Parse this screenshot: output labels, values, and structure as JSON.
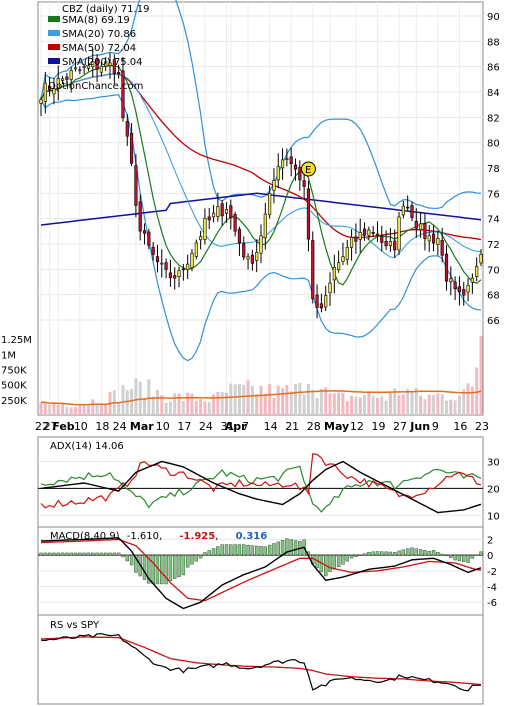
{
  "chart_data": {
    "type": "candlestick",
    "symbol_label": "CBZ (daily) 71.19",
    "watermark": "OptionChance.com",
    "colors": {
      "up": "#f5e642",
      "down": "#c8102e",
      "sma8": "#1a7a1a",
      "sma20": "#3aa0e0",
      "sma50": "#c00000",
      "sma200": "#1010a0",
      "bollinger": "#3090d8",
      "volume_up": "#f2b8c0",
      "volume_down": "#d0d0d0",
      "volume_avg": "#e07020",
      "adx": "#000000",
      "plus_di": "#2a8a2a",
      "minus_di": "#d01010",
      "macd": "#000000",
      "signal": "#d01010",
      "hist": "#7fc87f",
      "rs": "#000000",
      "rs_ma": "#d01010"
    },
    "legend": [
      {
        "label": "SMA(8) 69.19",
        "color": "#1a7a1a"
      },
      {
        "label": "SMA(20) 70.86",
        "color": "#3aa0e0"
      },
      {
        "label": "SMA(50) 72.04",
        "color": "#c00000"
      },
      {
        "label": "SMA(200) 75.04",
        "color": "#1010a0"
      }
    ],
    "price_axis": {
      "ticks": [
        "90",
        "88",
        "86",
        "84",
        "82",
        "80",
        "78",
        "76",
        "74",
        "72",
        "70",
        "68",
        "66"
      ],
      "ylim": [
        65,
        91
      ]
    },
    "volume_axis": {
      "ticks": [
        "1.25M",
        "1M",
        "750K",
        "500K",
        "250K"
      ],
      "ylim": [
        0,
        1400000
      ]
    },
    "x_labels": [
      {
        "t": "22",
        "i": 0,
        "bold": false
      },
      {
        "t": "27",
        "i": 2,
        "bold": false
      },
      {
        "t": "Feb",
        "i": 4,
        "bold": true
      },
      {
        "t": "10",
        "i": 9,
        "bold": false
      },
      {
        "t": "18",
        "i": 14,
        "bold": false
      },
      {
        "t": "24",
        "i": 18,
        "bold": false
      },
      {
        "t": "Mar",
        "i": 22,
        "bold": true
      },
      {
        "t": "10",
        "i": 28,
        "bold": false
      },
      {
        "t": "17",
        "i": 33,
        "bold": false
      },
      {
        "t": "24",
        "i": 38,
        "bold": false
      },
      {
        "t": "31",
        "i": 43,
        "bold": false
      },
      {
        "t": "Apr",
        "i": 44,
        "bold": true
      },
      {
        "t": "7",
        "i": 48,
        "bold": false
      },
      {
        "t": "14",
        "i": 53,
        "bold": false
      },
      {
        "t": "21",
        "i": 58,
        "bold": false
      },
      {
        "t": "28",
        "i": 63,
        "bold": false
      },
      {
        "t": "May",
        "i": 67,
        "bold": true
      },
      {
        "t": "12",
        "i": 73,
        "bold": false
      },
      {
        "t": "19",
        "i": 78,
        "bold": false
      },
      {
        "t": "27",
        "i": 83,
        "bold": false
      },
      {
        "t": "Jun",
        "i": 87,
        "bold": true
      },
      {
        "t": "9",
        "i": 92,
        "bold": false
      },
      {
        "t": "16",
        "i": 97,
        "bold": false
      },
      {
        "t": "23",
        "i": 102,
        "bold": false
      }
    ],
    "earnings_marker": {
      "label": "E",
      "i": 62
    },
    "close_anchors": [
      [
        0,
        84.0
      ],
      [
        3,
        84.6
      ],
      [
        8,
        85.6
      ],
      [
        14,
        86.2
      ],
      [
        17,
        86.0
      ],
      [
        18,
        85.2
      ],
      [
        19,
        82.0
      ],
      [
        21,
        78.0
      ],
      [
        23,
        73.0
      ],
      [
        26,
        71.0
      ],
      [
        29,
        69.5
      ],
      [
        32,
        69.5
      ],
      [
        35,
        71.5
      ],
      [
        38,
        73.5
      ],
      [
        41,
        74.5
      ],
      [
        43,
        75.0
      ],
      [
        45,
        73.0
      ],
      [
        48,
        70.5
      ],
      [
        50,
        71.5
      ],
      [
        53,
        75.5
      ],
      [
        55,
        78.5
      ],
      [
        57,
        79.0
      ],
      [
        59,
        78.0
      ],
      [
        61,
        76.5
      ],
      [
        63,
        68.0
      ],
      [
        64,
        66.5
      ],
      [
        66,
        67.5
      ],
      [
        68,
        70.0
      ],
      [
        70,
        71.0
      ],
      [
        72,
        72.0
      ],
      [
        75,
        73.0
      ],
      [
        78,
        73.0
      ],
      [
        80,
        71.5
      ],
      [
        82,
        72.0
      ],
      [
        84,
        75.5
      ],
      [
        86,
        74.5
      ],
      [
        88,
        73.0
      ],
      [
        90,
        72.5
      ],
      [
        92,
        72.5
      ],
      [
        94,
        69.5
      ],
      [
        96,
        68.0
      ],
      [
        98,
        67.5
      ],
      [
        100,
        69.0
      ],
      [
        101,
        70.5
      ],
      [
        102,
        71.2
      ]
    ],
    "volume_anchors": [
      [
        0,
        180000
      ],
      [
        10,
        200000
      ],
      [
        18,
        330000
      ],
      [
        20,
        480000
      ],
      [
        25,
        420000
      ],
      [
        30,
        300000
      ],
      [
        40,
        260000
      ],
      [
        44,
        400000
      ],
      [
        50,
        420000
      ],
      [
        55,
        380000
      ],
      [
        60,
        420000
      ],
      [
        62,
        650000
      ],
      [
        64,
        450000
      ],
      [
        68,
        280000
      ],
      [
        75,
        320000
      ],
      [
        80,
        300000
      ],
      [
        84,
        420000
      ],
      [
        88,
        300000
      ],
      [
        95,
        330000
      ],
      [
        100,
        420000
      ],
      [
        102,
        1300000
      ]
    ],
    "adx_panel": {
      "label": "ADX(14) 14.06",
      "ticks": [
        "30",
        "20",
        "10"
      ],
      "ylim": [
        6,
        38
      ],
      "adx_anchors": [
        [
          0,
          20
        ],
        [
          10,
          22
        ],
        [
          18,
          19
        ],
        [
          22,
          26
        ],
        [
          28,
          30
        ],
        [
          33,
          28
        ],
        [
          40,
          22
        ],
        [
          46,
          18
        ],
        [
          50,
          16
        ],
        [
          56,
          14
        ],
        [
          60,
          18
        ],
        [
          63,
          23
        ],
        [
          66,
          27
        ],
        [
          70,
          30
        ],
        [
          74,
          26
        ],
        [
          80,
          21
        ],
        [
          86,
          16
        ],
        [
          92,
          11
        ],
        [
          98,
          12
        ],
        [
          102,
          14.06
        ]
      ],
      "plus_anchors": [
        [
          0,
          22
        ],
        [
          8,
          24
        ],
        [
          16,
          26
        ],
        [
          20,
          19
        ],
        [
          25,
          14
        ],
        [
          30,
          17
        ],
        [
          36,
          21
        ],
        [
          42,
          26
        ],
        [
          48,
          23
        ],
        [
          55,
          24
        ],
        [
          60,
          28
        ],
        [
          63,
          14
        ],
        [
          66,
          12
        ],
        [
          70,
          19
        ],
        [
          76,
          23
        ],
        [
          82,
          21
        ],
        [
          86,
          24
        ],
        [
          92,
          27
        ],
        [
          98,
          24
        ],
        [
          102,
          24
        ]
      ],
      "minus_anchors": [
        [
          0,
          14
        ],
        [
          8,
          15
        ],
        [
          16,
          17
        ],
        [
          20,
          22
        ],
        [
          24,
          30
        ],
        [
          28,
          27
        ],
        [
          34,
          25
        ],
        [
          40,
          20
        ],
        [
          46,
          22
        ],
        [
          52,
          21
        ],
        [
          58,
          22
        ],
        [
          62,
          18
        ],
        [
          63,
          34
        ],
        [
          66,
          30
        ],
        [
          72,
          24
        ],
        [
          78,
          21
        ],
        [
          84,
          17
        ],
        [
          90,
          20
        ],
        [
          96,
          26
        ],
        [
          102,
          22
        ]
      ]
    },
    "macd_panel": {
      "label": "MACD(8,40,9)",
      "macd_value": "-1.610",
      "signal_value": "-1.925",
      "hist_value": "0.316",
      "ticks": [
        "2",
        "0",
        "-2",
        "-4",
        "-6"
      ],
      "ylim": [
        -7.5,
        3.2
      ],
      "macd_anchors": [
        [
          0,
          1.8
        ],
        [
          10,
          2.0
        ],
        [
          18,
          2.2
        ],
        [
          21,
          0.5
        ],
        [
          25,
          -3.0
        ],
        [
          29,
          -5.5
        ],
        [
          33,
          -6.8
        ],
        [
          37,
          -6.0
        ],
        [
          42,
          -3.8
        ],
        [
          47,
          -2.5
        ],
        [
          52,
          -1.5
        ],
        [
          57,
          0.4
        ],
        [
          61,
          1.0
        ],
        [
          63,
          -1.2
        ],
        [
          66,
          -3.2
        ],
        [
          70,
          -2.8
        ],
        [
          76,
          -1.8
        ],
        [
          82,
          -1.4
        ],
        [
          86,
          -0.6
        ],
        [
          91,
          -0.4
        ],
        [
          95,
          -1.2
        ],
        [
          99,
          -2.2
        ],
        [
          102,
          -1.61
        ]
      ],
      "signal_anchors": [
        [
          0,
          1.6
        ],
        [
          10,
          1.8
        ],
        [
          18,
          2.0
        ],
        [
          22,
          1.2
        ],
        [
          26,
          -1.0
        ],
        [
          30,
          -3.5
        ],
        [
          34,
          -5.5
        ],
        [
          38,
          -5.8
        ],
        [
          43,
          -4.5
        ],
        [
          48,
          -3.2
        ],
        [
          54,
          -1.8
        ],
        [
          60,
          -0.4
        ],
        [
          63,
          -0.4
        ],
        [
          67,
          -1.6
        ],
        [
          72,
          -2.2
        ],
        [
          78,
          -2.0
        ],
        [
          84,
          -1.5
        ],
        [
          90,
          -0.8
        ],
        [
          96,
          -1.0
        ],
        [
          100,
          -1.7
        ],
        [
          102,
          -1.925
        ]
      ]
    },
    "rs_panel": {
      "label": "RS vs SPY",
      "ylim": [
        0,
        100
      ],
      "rs_anchors": [
        [
          0,
          88
        ],
        [
          8,
          92
        ],
        [
          14,
          95
        ],
        [
          18,
          94
        ],
        [
          21,
          80
        ],
        [
          24,
          65
        ],
        [
          28,
          50
        ],
        [
          33,
          45
        ],
        [
          38,
          50
        ],
        [
          43,
          55
        ],
        [
          48,
          48
        ],
        [
          53,
          55
        ],
        [
          58,
          60
        ],
        [
          61,
          58
        ],
        [
          63,
          20
        ],
        [
          66,
          25
        ],
        [
          70,
          35
        ],
        [
          75,
          32
        ],
        [
          80,
          30
        ],
        [
          84,
          38
        ],
        [
          88,
          32
        ],
        [
          92,
          30
        ],
        [
          96,
          25
        ],
        [
          99,
          16
        ],
        [
          101,
          26
        ],
        [
          102,
          24
        ]
      ],
      "rs_ma_anchors": [
        [
          0,
          90
        ],
        [
          10,
          93
        ],
        [
          18,
          92
        ],
        [
          24,
          78
        ],
        [
          30,
          62
        ],
        [
          36,
          56
        ],
        [
          42,
          53
        ],
        [
          48,
          51
        ],
        [
          54,
          50
        ],
        [
          60,
          48
        ],
        [
          63,
          45
        ],
        [
          66,
          40
        ],
        [
          72,
          36
        ],
        [
          78,
          34
        ],
        [
          84,
          33
        ],
        [
          90,
          30
        ],
        [
          96,
          28
        ],
        [
          100,
          26
        ],
        [
          102,
          25
        ]
      ]
    }
  }
}
